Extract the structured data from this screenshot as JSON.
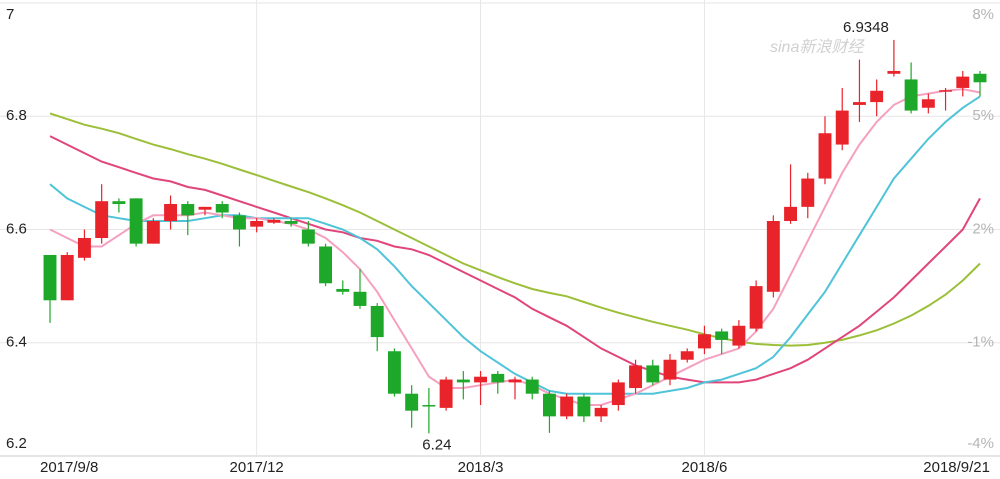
{
  "chart_data": {
    "type": "candlestick",
    "watermark": "sina新浪财经",
    "categories": [
      "2017/9/8",
      null,
      null,
      null,
      null,
      null,
      null,
      null,
      null,
      null,
      null,
      null,
      "2017/12",
      null,
      null,
      null,
      null,
      null,
      null,
      null,
      null,
      null,
      null,
      null,
      null,
      "2018/3",
      null,
      null,
      null,
      null,
      null,
      null,
      null,
      null,
      null,
      null,
      null,
      null,
      "2018/6",
      null,
      null,
      null,
      null,
      null,
      null,
      null,
      null,
      null,
      null,
      null,
      null,
      null,
      null,
      null,
      "2018/9/21"
    ],
    "open": [
      6.555,
      6.475,
      6.55,
      6.585,
      6.65,
      6.655,
      6.575,
      6.615,
      6.645,
      6.635,
      6.645,
      6.625,
      6.605,
      6.612,
      6.615,
      6.6,
      6.57,
      6.495,
      6.49,
      6.465,
      6.385,
      6.31,
      6.29,
      6.285,
      6.335,
      6.33,
      6.345,
      6.33,
      6.335,
      6.31,
      6.27,
      6.305,
      6.27,
      6.29,
      6.32,
      6.36,
      6.335,
      6.37,
      6.39,
      6.42,
      6.395,
      6.425,
      6.49,
      6.615,
      6.64,
      6.69,
      6.75,
      6.82,
      6.825,
      6.875,
      6.865,
      6.815,
      6.845,
      6.85,
      6.875
    ],
    "high": [
      6.555,
      6.56,
      6.6,
      6.68,
      6.655,
      6.655,
      6.62,
      6.66,
      6.65,
      6.64,
      6.65,
      6.63,
      6.62,
      6.62,
      6.62,
      6.615,
      6.575,
      6.51,
      6.53,
      6.47,
      6.39,
      6.325,
      6.32,
      6.34,
      6.35,
      6.35,
      6.35,
      6.34,
      6.34,
      6.315,
      6.31,
      6.31,
      6.29,
      6.335,
      6.37,
      6.37,
      6.38,
      6.39,
      6.43,
      6.425,
      6.44,
      6.51,
      6.625,
      6.715,
      6.7,
      6.8,
      6.85,
      6.9,
      6.865,
      6.9348,
      6.895,
      6.84,
      6.85,
      6.88,
      6.88
    ],
    "low": [
      6.435,
      6.475,
      6.545,
      6.575,
      6.63,
      6.57,
      6.575,
      6.6,
      6.59,
      6.625,
      6.62,
      6.57,
      6.595,
      6.61,
      6.605,
      6.57,
      6.5,
      6.485,
      6.46,
      6.385,
      6.305,
      6.25,
      6.24,
      6.28,
      6.3,
      6.29,
      6.31,
      6.3,
      6.3,
      6.2409,
      6.265,
      6.26,
      6.26,
      6.28,
      6.31,
      6.325,
      6.325,
      6.365,
      6.38,
      6.38,
      6.39,
      6.42,
      6.48,
      6.61,
      6.62,
      6.68,
      6.74,
      6.79,
      6.8,
      6.87,
      6.805,
      6.805,
      6.81,
      6.835,
      6.835
    ],
    "close": [
      6.475,
      6.555,
      6.585,
      6.65,
      6.645,
      6.575,
      6.615,
      6.645,
      6.625,
      6.64,
      6.63,
      6.6,
      6.615,
      6.617,
      6.61,
      6.575,
      6.505,
      6.49,
      6.465,
      6.41,
      6.31,
      6.28,
      6.288,
      6.335,
      6.33,
      6.34,
      6.33,
      6.335,
      6.31,
      6.27,
      6.305,
      6.27,
      6.285,
      6.33,
      6.36,
      6.33,
      6.37,
      6.385,
      6.415,
      6.405,
      6.43,
      6.5,
      6.615,
      6.64,
      6.69,
      6.77,
      6.81,
      6.825,
      6.845,
      6.88,
      6.81,
      6.83,
      6.846,
      6.87,
      6.86
    ],
    "up_color": "#e8232a",
    "down_color": "#1ea82a",
    "lines": [
      {
        "color": "#9cbf3a",
        "values": [
          6.805,
          6.795,
          6.785,
          6.778,
          6.77,
          6.76,
          6.75,
          6.742,
          6.733,
          6.725,
          6.716,
          6.706,
          6.696,
          6.686,
          6.676,
          6.666,
          6.655,
          6.643,
          6.63,
          6.615,
          6.6,
          6.585,
          6.57,
          6.555,
          6.54,
          6.528,
          6.516,
          6.505,
          6.495,
          6.488,
          6.482,
          6.472,
          6.462,
          6.453,
          6.445,
          6.437,
          6.43,
          6.423,
          6.415,
          6.408,
          6.402,
          6.398,
          6.396,
          6.395,
          6.396,
          6.4,
          6.405,
          6.413,
          6.422,
          6.434,
          6.448,
          6.465,
          6.485,
          6.51,
          6.54
        ]
      },
      {
        "color": "#e0457b",
        "values": [
          6.765,
          6.75,
          6.735,
          6.72,
          6.71,
          6.7,
          6.69,
          6.685,
          6.675,
          6.67,
          6.66,
          6.65,
          6.64,
          6.63,
          6.62,
          6.61,
          6.6,
          6.595,
          6.585,
          6.58,
          6.57,
          6.565,
          6.555,
          6.54,
          6.525,
          6.51,
          6.495,
          6.48,
          6.46,
          6.445,
          6.43,
          6.41,
          6.39,
          6.375,
          6.36,
          6.35,
          6.34,
          6.335,
          6.33,
          6.33,
          6.33,
          6.335,
          6.345,
          6.355,
          6.37,
          6.39,
          6.41,
          6.43,
          6.455,
          6.48,
          6.51,
          6.54,
          6.57,
          6.6,
          6.655
        ]
      },
      {
        "color": "#4fc3d8",
        "values": [
          6.68,
          6.655,
          6.64,
          6.625,
          6.62,
          6.615,
          6.615,
          6.615,
          6.615,
          6.62,
          6.625,
          6.625,
          6.62,
          6.62,
          6.62,
          6.62,
          6.61,
          6.6,
          6.585,
          6.565,
          6.535,
          6.5,
          6.47,
          6.44,
          6.41,
          6.385,
          6.365,
          6.345,
          6.33,
          6.315,
          6.31,
          6.31,
          6.31,
          6.31,
          6.31,
          6.31,
          6.315,
          6.32,
          6.33,
          6.335,
          6.345,
          6.355,
          6.375,
          6.41,
          6.45,
          6.49,
          6.54,
          6.59,
          6.64,
          6.69,
          6.725,
          6.76,
          6.79,
          6.815,
          6.835
        ]
      },
      {
        "color": "#f5a0c0",
        "values": [
          6.6,
          6.585,
          6.57,
          6.57,
          6.59,
          6.61,
          6.625,
          6.625,
          6.625,
          6.63,
          6.625,
          6.62,
          6.62,
          6.615,
          6.61,
          6.6,
          6.585,
          6.56,
          6.53,
          6.49,
          6.44,
          6.39,
          6.34,
          6.32,
          6.32,
          6.325,
          6.33,
          6.335,
          6.325,
          6.31,
          6.3,
          6.29,
          6.29,
          6.3,
          6.31,
          6.325,
          6.34,
          6.355,
          6.37,
          6.38,
          6.39,
          6.42,
          6.46,
          6.52,
          6.58,
          6.64,
          6.7,
          6.75,
          6.79,
          6.82,
          6.835,
          6.84,
          6.845,
          6.848,
          6.842
        ]
      }
    ],
    "ylim": [
      6.2,
      7
    ],
    "yticks": [
      6.2,
      6.4,
      6.6,
      6.8,
      7
    ],
    "y2lim": [
      -4,
      8
    ],
    "y2ticks": [
      {
        "value": -4,
        "label": "-4%"
      },
      {
        "value": -1,
        "label": "-1%"
      },
      {
        "value": 2,
        "label": "2%"
      },
      {
        "value": 5,
        "label": "5%"
      },
      {
        "value": 8,
        "label": "8%"
      }
    ],
    "grid": true
  }
}
